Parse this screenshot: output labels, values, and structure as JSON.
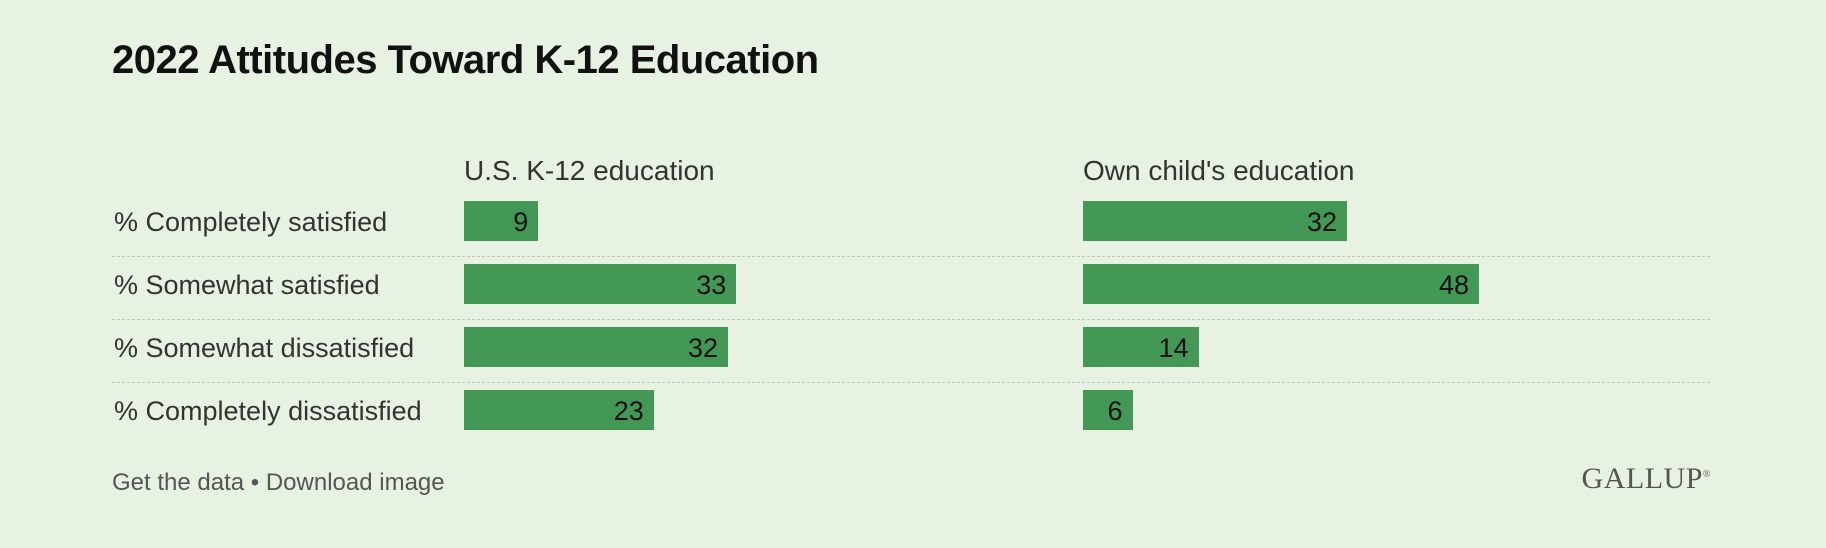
{
  "title": "2022 Attitudes Toward K-12 Education",
  "chart_data": {
    "type": "bar",
    "orientation": "horizontal",
    "title": "2022 Attitudes Toward K-12 Education",
    "categories": [
      "% Completely satisfied",
      "% Somewhat satisfied",
      "% Somewhat dissatisfied",
      "% Completely dissatisfied"
    ],
    "series": [
      {
        "name": "U.S. K-12 education",
        "values": [
          9,
          33,
          32,
          23
        ]
      },
      {
        "name": "Own child's education",
        "values": [
          32,
          48,
          14,
          6
        ]
      }
    ],
    "xlim": [
      0,
      100
    ],
    "color": "#439856"
  },
  "footer": {
    "get_data": "Get the data",
    "separator": "•",
    "download": "Download image"
  },
  "brand": {
    "name": "GALLUP",
    "mark": "®"
  }
}
